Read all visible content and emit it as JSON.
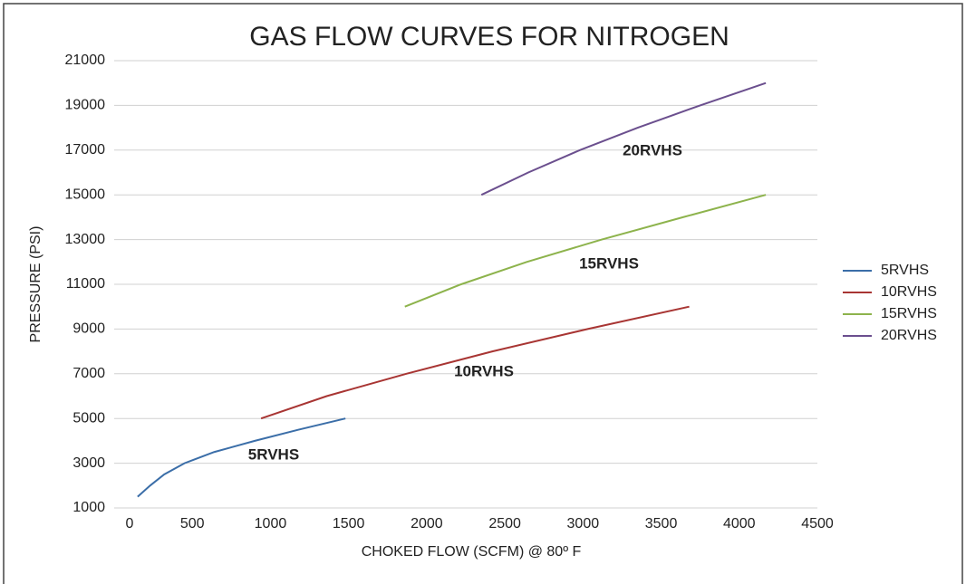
{
  "chart_data": {
    "type": "line",
    "title": "GAS FLOW CURVES FOR NITROGEN",
    "x_label": "CHOKED FLOW (SCFM) @ 80º F",
    "y_label": "PRESSURE (PSI)",
    "xlim": [
      0,
      4500
    ],
    "xticks": [
      0,
      500,
      1000,
      1500,
      2000,
      2500,
      3000,
      3500,
      4000,
      4500
    ],
    "ylim": [
      1000,
      21000
    ],
    "yticks": [
      1000,
      3000,
      5000,
      7000,
      9000,
      11000,
      13000,
      15000,
      17000,
      19000,
      21000
    ],
    "grid": true,
    "legend": "right",
    "series": [
      {
        "name": "5RVHS",
        "color": "#3b6ea8",
        "x": [
          150,
          230,
          320,
          450,
          640,
          900,
          1180,
          1480
        ],
        "values": [
          1500,
          2000,
          2500,
          3000,
          3500,
          4000,
          4500,
          5000
        ]
      },
      {
        "name": "10RVHS",
        "color": "#a83533",
        "x": [
          940,
          1360,
          1870,
          2420,
          3030,
          3680
        ],
        "values": [
          5000,
          6000,
          7000,
          8000,
          9000,
          10000
        ]
      },
      {
        "name": "15RVHS",
        "color": "#8db34c",
        "x": [
          1860,
          2220,
          2640,
          3120,
          3640,
          4170
        ],
        "values": [
          10000,
          11000,
          12000,
          13000,
          14000,
          15000
        ]
      },
      {
        "name": "20RVHS",
        "color": "#6b4f8e",
        "x": [
          2350,
          2650,
          2980,
          3350,
          3750,
          4170
        ],
        "values": [
          15000,
          16000,
          17000,
          18000,
          19000,
          20000
        ]
      }
    ],
    "annotations": [
      "5RVHS",
      "10RVHS",
      "15RVHS",
      "20RVHS"
    ]
  }
}
